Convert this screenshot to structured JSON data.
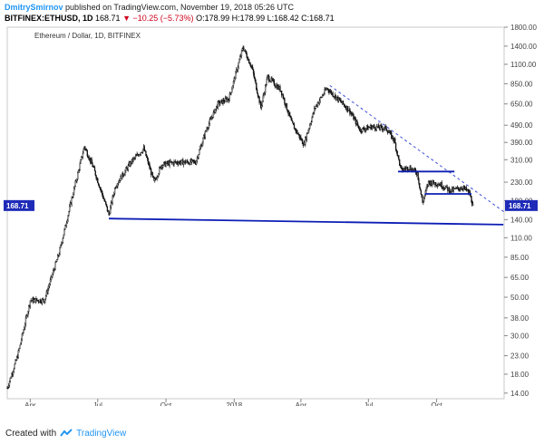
{
  "header": {
    "author": "DmitrySmirnov",
    "published": "published on TradingView.com, November 19, 2018 05:26 UTC",
    "symbol": "BITFINEX:ETHUSD, 1D",
    "last": "168.71",
    "change": "▼ −10.25 (−5.73%)",
    "ohlc": "O:178.99 H:178.99 L:168.42 C:168.71"
  },
  "chart_data": {
    "type": "candlestick",
    "title": "Ethereum / Dollar, 1D, BITFINEX",
    "y_scale": "log",
    "ylim": [
      13,
      1800
    ],
    "y_ticks": [
      1800,
      1400,
      1100,
      850,
      650,
      490,
      390,
      310,
      230,
      180,
      140,
      110,
      85,
      65,
      50,
      38,
      30,
      23,
      18,
      14
    ],
    "y_tick_labels": [
      "1800.00",
      "1400.00",
      "1100.00",
      "850.00",
      "650.00",
      "490.00",
      "390.00",
      "310.00",
      "230.00",
      "180.00",
      "140.00",
      "110.00",
      "85.00",
      "65.00",
      "50.00",
      "38.00",
      "30.00",
      "23.00",
      "18.00",
      "14.00"
    ],
    "x_ticks": [
      {
        "label": "Apr",
        "date": "2017-04-01"
      },
      {
        "label": "Jul",
        "date": "2017-07-01"
      },
      {
        "label": "Oct",
        "date": "2017-10-01"
      },
      {
        "label": "2018",
        "date": "2018-01-01"
      },
      {
        "label": "Apr",
        "date": "2018-04-01"
      },
      {
        "label": "Jul",
        "date": "2018-07-01"
      },
      {
        "label": "Oct",
        "date": "2018-10-01"
      }
    ],
    "x_range": [
      "2017-03-01",
      "2018-12-31"
    ],
    "last_price": 168.71,
    "price_path": [
      {
        "date": "2017-03-01",
        "price": 15
      },
      {
        "date": "2017-03-15",
        "price": 23
      },
      {
        "date": "2017-04-01",
        "price": 48
      },
      {
        "date": "2017-04-20",
        "price": 48
      },
      {
        "date": "2017-05-10",
        "price": 90
      },
      {
        "date": "2017-05-25",
        "price": 170
      },
      {
        "date": "2017-06-13",
        "price": 370
      },
      {
        "date": "2017-06-25",
        "price": 280
      },
      {
        "date": "2017-07-16",
        "price": 150
      },
      {
        "date": "2017-07-25",
        "price": 220
      },
      {
        "date": "2017-08-15",
        "price": 300
      },
      {
        "date": "2017-09-01",
        "price": 360
      },
      {
        "date": "2017-09-15",
        "price": 230
      },
      {
        "date": "2017-09-25",
        "price": 290
      },
      {
        "date": "2017-10-15",
        "price": 300
      },
      {
        "date": "2017-11-10",
        "price": 300
      },
      {
        "date": "2017-11-25",
        "price": 470
      },
      {
        "date": "2017-12-10",
        "price": 650
      },
      {
        "date": "2017-12-25",
        "price": 700
      },
      {
        "date": "2018-01-13",
        "price": 1380
      },
      {
        "date": "2018-01-25",
        "price": 1050
      },
      {
        "date": "2018-02-06",
        "price": 620
      },
      {
        "date": "2018-02-15",
        "price": 930
      },
      {
        "date": "2018-03-05",
        "price": 780
      },
      {
        "date": "2018-03-20",
        "price": 500
      },
      {
        "date": "2018-04-05",
        "price": 380
      },
      {
        "date": "2018-04-20",
        "price": 620
      },
      {
        "date": "2018-05-06",
        "price": 800
      },
      {
        "date": "2018-05-20",
        "price": 700
      },
      {
        "date": "2018-06-05",
        "price": 600
      },
      {
        "date": "2018-06-20",
        "price": 460
      },
      {
        "date": "2018-07-05",
        "price": 480
      },
      {
        "date": "2018-07-25",
        "price": 470
      },
      {
        "date": "2018-08-05",
        "price": 400
      },
      {
        "date": "2018-08-14",
        "price": 270
      },
      {
        "date": "2018-08-25",
        "price": 280
      },
      {
        "date": "2018-09-05",
        "price": 260
      },
      {
        "date": "2018-09-12",
        "price": 175
      },
      {
        "date": "2018-09-20",
        "price": 230
      },
      {
        "date": "2018-10-05",
        "price": 225
      },
      {
        "date": "2018-10-20",
        "price": 205
      },
      {
        "date": "2018-11-05",
        "price": 215
      },
      {
        "date": "2018-11-14",
        "price": 200
      },
      {
        "date": "2018-11-19",
        "price": 168.71
      }
    ],
    "drawings": [
      {
        "kind": "support-line",
        "color": "#0d1eb5",
        "from": {
          "date": "2017-07-16",
          "price": 142
        },
        "to": {
          "date": "2018-12-30",
          "price": 131
        }
      },
      {
        "kind": "resistance-dashed",
        "color": "#3d4fd9",
        "from": {
          "date": "2018-05-10",
          "price": 830
        },
        "to": {
          "date": "2018-12-31",
          "price": 155
        }
      },
      {
        "kind": "horizontal-segment",
        "color": "#0d1eb5",
        "from": {
          "date": "2018-08-10",
          "price": 265
        },
        "to": {
          "date": "2018-10-25",
          "price": 265
        }
      },
      {
        "kind": "horizontal-segment",
        "color": "#0d1eb5",
        "from": {
          "date": "2018-09-15",
          "price": 197
        },
        "to": {
          "date": "2018-11-17",
          "price": 197
        }
      }
    ]
  },
  "footer": {
    "created_with": "Created with",
    "brand": "TradingView"
  }
}
